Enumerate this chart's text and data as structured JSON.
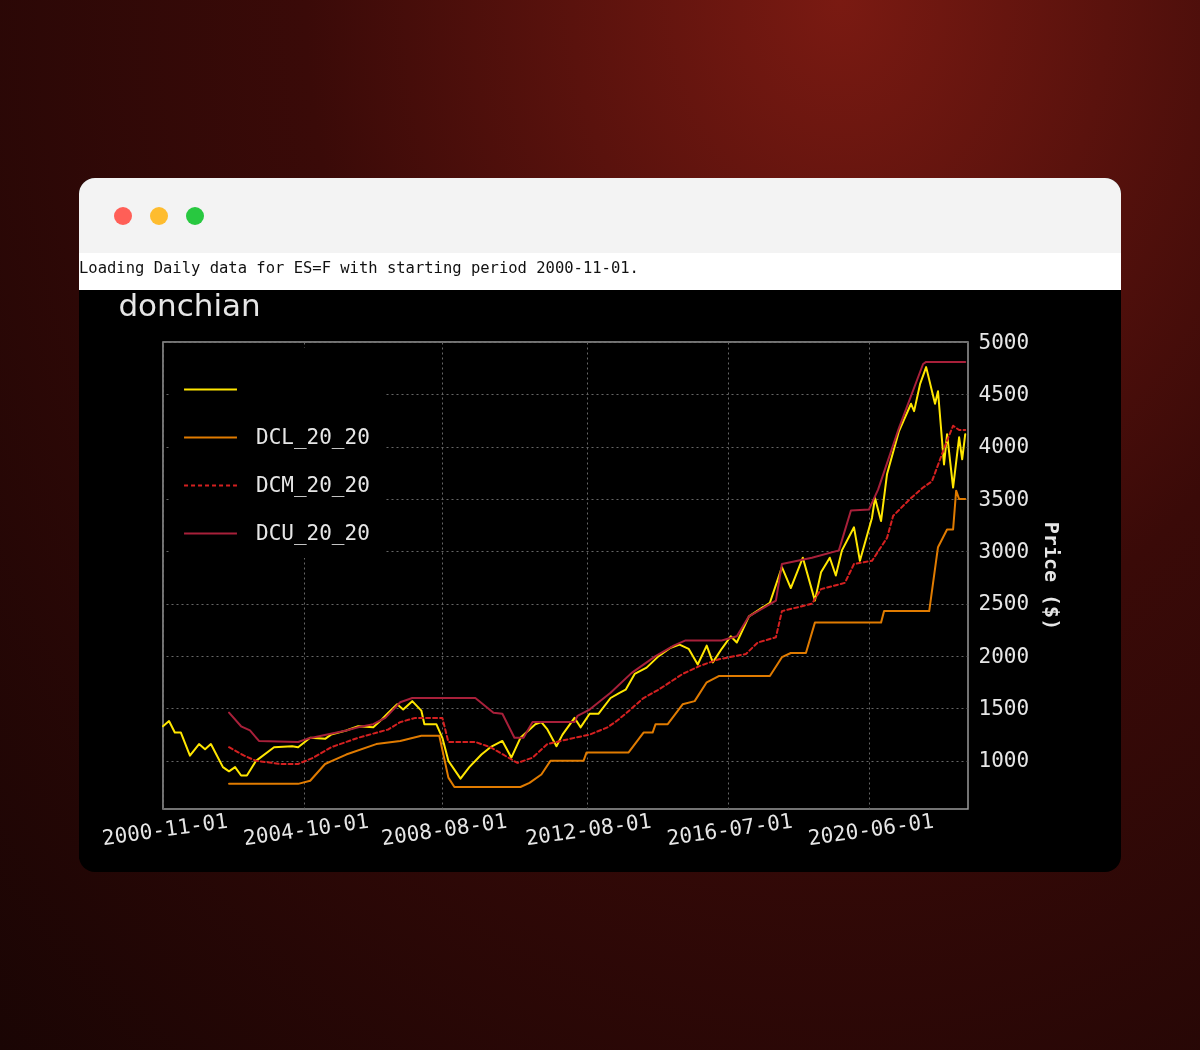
{
  "chart_data": {
    "type": "line",
    "title": "donchian",
    "ylabel": "Price ($)",
    "annotations": [
      "Loading Daily data for ES=F with starting period 2000-11-01."
    ],
    "xlim": [
      "2000-11-01",
      "2023-03-01"
    ],
    "xticks": [
      "2000-11-01",
      "2004-10-01",
      "2008-08-01",
      "2012-08-01",
      "2016-07-01",
      "2020-06-01"
    ],
    "ylim": [
      540,
      5000
    ],
    "yticks": [
      1000,
      1500,
      2000,
      2500,
      3000,
      3500,
      4000,
      4500,
      5000
    ],
    "grid": true,
    "legend": "top left",
    "series": [
      {
        "color": "#ffe600",
        "line_style": "solid",
        "x": [
          "2000-11",
          "2001-01",
          "2001-03",
          "2001-05",
          "2001-08",
          "2001-11",
          "2002-01",
          "2002-03",
          "2002-07",
          "2002-09",
          "2002-11",
          "2003-01",
          "2003-03",
          "2003-06",
          "2003-12",
          "2004-06",
          "2004-08",
          "2004-12",
          "2005-05",
          "2005-07",
          "2005-12",
          "2006-04",
          "2006-09",
          "2006-12",
          "2007-02",
          "2007-05",
          "2007-07",
          "2007-10",
          "2008-01",
          "2008-02",
          "2008-06",
          "2008-08",
          "2008-10",
          "2009-02",
          "2009-05",
          "2009-09",
          "2009-12",
          "2010-04",
          "2010-07",
          "2010-10",
          "2011-03",
          "2011-05",
          "2011-07",
          "2011-10",
          "2011-12",
          "2012-04",
          "2012-06",
          "2012-09",
          "2012-12",
          "2013-04",
          "2013-07",
          "2013-09",
          "2013-12",
          "2014-04",
          "2014-08",
          "2014-12",
          "2015-03",
          "2015-06",
          "2015-09",
          "2015-12",
          "2016-02",
          "2016-05",
          "2016-08",
          "2016-10",
          "2017-02",
          "2017-09",
          "2018-01",
          "2018-04",
          "2018-08",
          "2018-12",
          "2019-02",
          "2019-05",
          "2019-07",
          "2019-09",
          "2020-01",
          "2020-03",
          "2020-07",
          "2020-08",
          "2020-10",
          "2020-12",
          "2021-04",
          "2021-08",
          "2021-09",
          "2021-11",
          "2022-01",
          "2022-04",
          "2022-05",
          "2022-07",
          "2022-08",
          "2022-10",
          "2022-12",
          "2023-01",
          "2023-02"
        ],
        "values": [
          1330,
          1380,
          1270,
          1270,
          1050,
          1160,
          1110,
          1160,
          940,
          900,
          940,
          860,
          860,
          1000,
          1130,
          1140,
          1130,
          1220,
          1210,
          1250,
          1290,
          1330,
          1320,
          1400,
          1460,
          1540,
          1490,
          1570,
          1480,
          1350,
          1350,
          1220,
          1000,
          830,
          940,
          1060,
          1130,
          1190,
          1030,
          1220,
          1350,
          1370,
          1300,
          1140,
          1250,
          1410,
          1320,
          1450,
          1450,
          1600,
          1650,
          1680,
          1830,
          1890,
          2000,
          2080,
          2110,
          2070,
          1920,
          2100,
          1940,
          2070,
          2190,
          2130,
          2380,
          2510,
          2850,
          2650,
          2940,
          2530,
          2800,
          2940,
          2770,
          3010,
          3230,
          2910,
          3320,
          3510,
          3290,
          3740,
          4150,
          4410,
          4340,
          4600,
          4760,
          4410,
          4530,
          3830,
          4120,
          3610,
          4090,
          3880,
          4120
        ]
      },
      {
        "name": "DCL_20_20",
        "color": "#e07b00",
        "line_style": "solid",
        "x": [
          "2002-09",
          "2004-08",
          "2004-12",
          "2005-05",
          "2005-12",
          "2006-10",
          "2007-06",
          "2008-01",
          "2008-07",
          "2008-10",
          "2008-12",
          "2010-10",
          "2011-01",
          "2011-05",
          "2011-08",
          "2012-04",
          "2012-07",
          "2012-08",
          "2013-10",
          "2014-03",
          "2014-06",
          "2014-07",
          "2014-11",
          "2015-04",
          "2015-08",
          "2015-12",
          "2016-04",
          "2017-09",
          "2018-01",
          "2018-04",
          "2018-09",
          "2018-12",
          "2020-10",
          "2020-11",
          "2022-02",
          "2022-05",
          "2022-08",
          "2022-10",
          "2022-11",
          "2022-12",
          "2023-02"
        ],
        "values": [
          780,
          780,
          810,
          970,
          1060,
          1160,
          1190,
          1240,
          1240,
          840,
          750,
          750,
          790,
          870,
          1000,
          1000,
          1000,
          1080,
          1080,
          1270,
          1270,
          1350,
          1350,
          1540,
          1570,
          1750,
          1810,
          1810,
          1990,
          2030,
          2030,
          2320,
          2320,
          2430,
          2430,
          3040,
          3210,
          3210,
          3580,
          3500,
          3500
        ]
      },
      {
        "name": "DCM_20_20",
        "color": "#d42020",
        "line_style": "dashed",
        "x": [
          "2002-09",
          "2003-02",
          "2003-06",
          "2004-02",
          "2004-08",
          "2005-01",
          "2005-07",
          "2006-04",
          "2007-02",
          "2007-06",
          "2007-11",
          "2008-08",
          "2008-10",
          "2009-07",
          "2009-12",
          "2010-09",
          "2011-02",
          "2011-07",
          "2012-04",
          "2012-09",
          "2013-03",
          "2013-06",
          "2013-09",
          "2014-03",
          "2014-08",
          "2015-04",
          "2015-10",
          "2016-04",
          "2017-01",
          "2017-05",
          "2017-11",
          "2018-01",
          "2018-11",
          "2019-02",
          "2019-10",
          "2020-01",
          "2020-07",
          "2020-12",
          "2021-02",
          "2021-08",
          "2021-12",
          "2022-03",
          "2022-08",
          "2022-10",
          "2022-12",
          "2023-02"
        ],
        "values": [
          1130,
          1050,
          1000,
          970,
          970,
          1030,
          1130,
          1220,
          1300,
          1370,
          1410,
          1410,
          1180,
          1180,
          1130,
          980,
          1030,
          1160,
          1220,
          1250,
          1320,
          1380,
          1450,
          1600,
          1680,
          1830,
          1910,
          1970,
          2020,
          2130,
          2180,
          2430,
          2500,
          2640,
          2700,
          2880,
          2910,
          3130,
          3340,
          3510,
          3610,
          3670,
          4060,
          4200,
          4160,
          4160
        ]
      },
      {
        "name": "DCU_20_20",
        "color": "#a8203a",
        "line_style": "solid",
        "x": [
          "2002-09",
          "2003-01",
          "2003-04",
          "2003-07",
          "2004-08",
          "2004-11",
          "2005-12",
          "2006-04",
          "2006-09",
          "2007-01",
          "2007-06",
          "2007-10",
          "2009-07",
          "2010-01",
          "2010-04",
          "2010-08",
          "2010-11",
          "2011-02",
          "2012-04",
          "2012-05",
          "2012-09",
          "2013-04",
          "2013-11",
          "2014-07",
          "2015-01",
          "2015-05",
          "2016-05",
          "2016-10",
          "2017-02",
          "2017-11",
          "2018-01",
          "2018-11",
          "2019-08",
          "2019-12",
          "2020-06",
          "2020-09",
          "2021-04",
          "2021-12",
          "2022-01",
          "2023-02"
        ],
        "values": [
          1460,
          1330,
          1290,
          1190,
          1180,
          1210,
          1290,
          1320,
          1350,
          1410,
          1560,
          1600,
          1600,
          1460,
          1450,
          1220,
          1220,
          1370,
          1370,
          1430,
          1490,
          1650,
          1840,
          2000,
          2100,
          2150,
          2150,
          2190,
          2380,
          2530,
          2880,
          2940,
          3010,
          3390,
          3400,
          3590,
          4180,
          4790,
          4810,
          4810
        ]
      }
    ]
  }
}
